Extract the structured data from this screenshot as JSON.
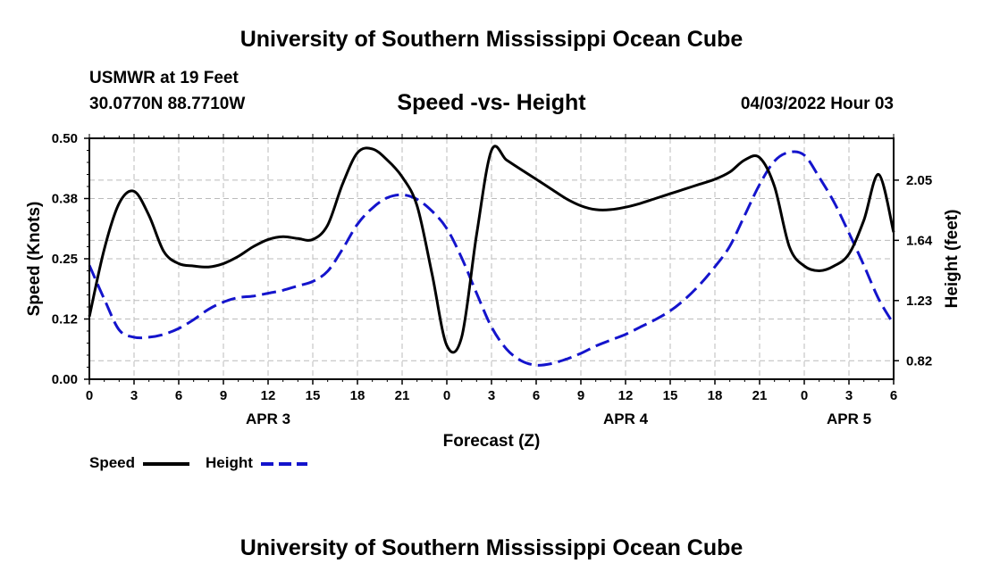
{
  "header": {
    "title": "University of Southern Mississippi Ocean Cube",
    "station": "USMWR at 19 Feet",
    "coords": "30.0770N  88.7710W",
    "date": "04/03/2022 Hour 03"
  },
  "footer": {
    "title": "University of Southern Mississippi Ocean Cube"
  },
  "chart_data": {
    "type": "line",
    "title": "Speed -vs- Height",
    "xlabel": "Forecast (Z)",
    "ylabel": "Speed (Knots)",
    "y2label": "Height (feet)",
    "x_range": [
      0,
      54
    ],
    "x_ticks": [
      0,
      3,
      6,
      9,
      12,
      15,
      18,
      21,
      24,
      27,
      30,
      33,
      36,
      39,
      42,
      45,
      48,
      51,
      54
    ],
    "x_tick_labels": [
      "0",
      "3",
      "6",
      "9",
      "12",
      "15",
      "18",
      "21",
      "0",
      "3",
      "6",
      "9",
      "12",
      "15",
      "18",
      "21",
      "0",
      "3",
      "6"
    ],
    "day_labels": [
      {
        "label": "APR 3",
        "x": 12
      },
      {
        "label": "APR 4",
        "x": 36
      },
      {
        "label": "APR 5",
        "x": 51
      }
    ],
    "y_range": [
      0,
      0.5
    ],
    "y_ticks": [
      0,
      0.125,
      0.25,
      0.375,
      0.5
    ],
    "y_tick_labels": [
      "0.00",
      "0.12",
      "0.25",
      "0.38",
      "0.50"
    ],
    "y2_range": [
      0.694,
      2.335
    ],
    "y2_ticks": [
      0.82,
      1.23,
      1.64,
      2.05
    ],
    "y2_tick_labels": [
      "0.82",
      "1.23",
      "1.64",
      "2.05"
    ],
    "grid": true,
    "legend_position": "bottom-left",
    "series": [
      {
        "name": "Speed",
        "axis": "left",
        "color": "#000000",
        "dash": "solid",
        "x": [
          0,
          1,
          2,
          3,
          4,
          5,
          6,
          7,
          8,
          9,
          10,
          11,
          12,
          13,
          14,
          15,
          16,
          17,
          18,
          19,
          20,
          21,
          22,
          23,
          24,
          25,
          26,
          27,
          28,
          29,
          30,
          31,
          32,
          33,
          34,
          35,
          36,
          37,
          38,
          39,
          40,
          41,
          42,
          43,
          44,
          45,
          46,
          47,
          48,
          49,
          50,
          51,
          52,
          53,
          54
        ],
        "values": [
          0.13,
          0.27,
          0.365,
          0.39,
          0.34,
          0.265,
          0.24,
          0.235,
          0.233,
          0.24,
          0.255,
          0.275,
          0.29,
          0.296,
          0.292,
          0.29,
          0.32,
          0.405,
          0.47,
          0.478,
          0.455,
          0.42,
          0.36,
          0.22,
          0.07,
          0.088,
          0.3,
          0.475,
          0.455,
          0.435,
          0.415,
          0.395,
          0.375,
          0.36,
          0.352,
          0.352,
          0.357,
          0.365,
          0.375,
          0.385,
          0.395,
          0.405,
          0.415,
          0.43,
          0.455,
          0.46,
          0.4,
          0.275,
          0.235,
          0.225,
          0.235,
          0.26,
          0.33,
          0.425,
          0.305
        ]
      },
      {
        "name": "Height",
        "axis": "right",
        "color": "#1414cc",
        "dash": "dashed",
        "x": [
          0,
          1,
          2,
          3,
          4,
          5,
          6,
          7,
          8,
          9,
          10,
          11,
          12,
          13,
          14,
          15,
          16,
          17,
          18,
          19,
          20,
          21,
          22,
          23,
          24,
          25,
          26,
          27,
          28,
          29,
          30,
          31,
          32,
          33,
          34,
          35,
          36,
          37,
          38,
          39,
          40,
          41,
          42,
          43,
          44,
          45,
          46,
          47,
          48,
          49,
          50,
          51,
          52,
          53,
          54
        ],
        "values": [
          1.47,
          1.24,
          1.03,
          0.98,
          0.98,
          1.0,
          1.04,
          1.1,
          1.17,
          1.22,
          1.25,
          1.26,
          1.28,
          1.3,
          1.33,
          1.36,
          1.43,
          1.58,
          1.75,
          1.86,
          1.93,
          1.95,
          1.92,
          1.84,
          1.72,
          1.52,
          1.28,
          1.05,
          0.9,
          0.82,
          0.79,
          0.8,
          0.83,
          0.87,
          0.92,
          0.96,
          1.0,
          1.05,
          1.1,
          1.16,
          1.24,
          1.34,
          1.46,
          1.6,
          1.81,
          2.02,
          2.18,
          2.24,
          2.22,
          2.07,
          1.9,
          1.69,
          1.47,
          1.24,
          1.07
        ]
      }
    ]
  }
}
